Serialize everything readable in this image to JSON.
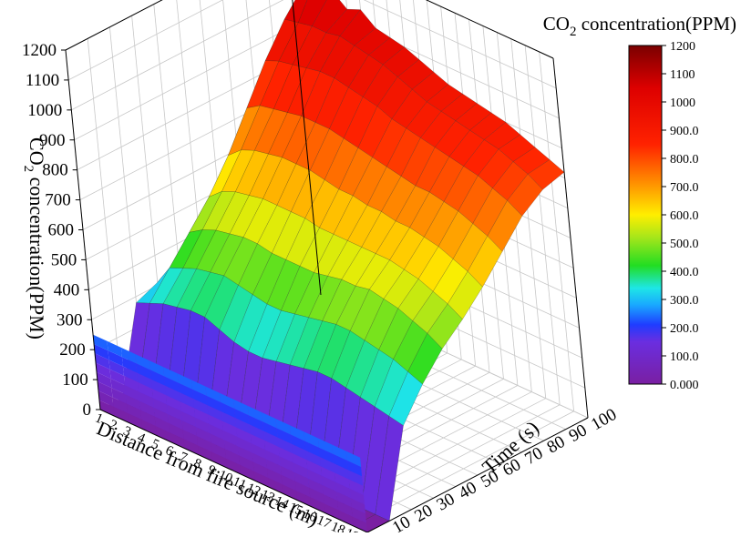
{
  "chart_data": {
    "type": "surface3d",
    "title": "",
    "zlabel": "CO₂ concentration(PPM)",
    "zlabel_parts": {
      "prefix": "CO",
      "sub": "2",
      "suffix": " concentration(PPM)"
    },
    "xlabel": "Distance from fire source (m)",
    "ylabel": "Time (s)",
    "x_ticks": [
      "1",
      "2",
      "3",
      "4",
      "5",
      "6",
      "7",
      "8",
      "9",
      "10",
      "11",
      "12",
      "13",
      "14",
      "15",
      "16",
      "17",
      "18",
      "19",
      "20"
    ],
    "y_ticks": [
      "10",
      "20",
      "30",
      "40",
      "50",
      "60",
      "70",
      "80",
      "90",
      "100"
    ],
    "z_ticks": [
      "0",
      "100",
      "200",
      "300",
      "400",
      "500",
      "600",
      "700",
      "800",
      "900",
      "1000",
      "1100",
      "1200"
    ],
    "xlim": [
      1,
      20
    ],
    "ylim": [
      0,
      100
    ],
    "zlim": [
      0,
      1200
    ],
    "grid": true,
    "colorbar": {
      "title": "CO₂ concentration(PPM)",
      "title_parts": {
        "prefix": "CO",
        "sub": "2",
        "suffix": " concentration(PPM)"
      },
      "placement": "right",
      "range": [
        0,
        1200
      ],
      "ticks": [
        "0.000",
        "100.0",
        "200.0",
        "300.0",
        "400.0",
        "500.0",
        "600.0",
        "700.0",
        "800.0",
        "900.0",
        "1000",
        "1100",
        "1200"
      ],
      "stops": [
        {
          "value": 0,
          "color": "#7a1fa2"
        },
        {
          "value": 150,
          "color": "#6a2ee0"
        },
        {
          "value": 210,
          "color": "#1f3cff"
        },
        {
          "value": 280,
          "color": "#19a8ff"
        },
        {
          "value": 340,
          "color": "#1ee6e6"
        },
        {
          "value": 420,
          "color": "#22dd22"
        },
        {
          "value": 520,
          "color": "#a6e61a"
        },
        {
          "value": 600,
          "color": "#ffee00"
        },
        {
          "value": 700,
          "color": "#ff9a00"
        },
        {
          "value": 850,
          "color": "#ff2200"
        },
        {
          "value": 1050,
          "color": "#dd0000"
        },
        {
          "value": 1200,
          "color": "#7a0000"
        }
      ]
    },
    "series": [
      {
        "x": 1,
        "values": [
          0,
          0,
          280,
          310,
          330,
          340,
          350,
          360,
          370,
          380,
          400
        ]
      },
      {
        "x": 2,
        "values": [
          0,
          0,
          300,
          380,
          460,
          540,
          640,
          760,
          880,
          980,
          1060
        ]
      },
      {
        "x": 3,
        "values": [
          0,
          0,
          320,
          400,
          490,
          580,
          680,
          790,
          900,
          990,
          1110
        ]
      },
      {
        "x": 4,
        "values": [
          0,
          0,
          330,
          420,
          510,
          600,
          700,
          800,
          910,
          1000,
          1080
        ]
      },
      {
        "x": 5,
        "values": [
          0,
          0,
          340,
          430,
          520,
          610,
          710,
          810,
          920,
          1000,
          1040
        ]
      },
      {
        "x": 6,
        "values": [
          0,
          0,
          340,
          440,
          530,
          620,
          720,
          820,
          930,
          1010,
          1060
        ]
      },
      {
        "x": 7,
        "values": [
          0,
          0,
          320,
          430,
          530,
          620,
          720,
          820,
          930,
          1000,
          1020
        ]
      },
      {
        "x": 8,
        "values": [
          0,
          0,
          300,
          420,
          520,
          620,
          720,
          820,
          920,
          990,
          1010
        ]
      },
      {
        "x": 9,
        "values": [
          0,
          0,
          290,
          410,
          520,
          620,
          710,
          810,
          910,
          980,
          1000
        ]
      },
      {
        "x": 10,
        "values": [
          0,
          0,
          290,
          410,
          520,
          610,
          700,
          800,
          900,
          960,
          980
        ]
      },
      {
        "x": 11,
        "values": [
          0,
          0,
          300,
          420,
          520,
          610,
          700,
          790,
          880,
          940,
          960
        ]
      },
      {
        "x": 12,
        "values": [
          0,
          0,
          310,
          430,
          530,
          610,
          690,
          780,
          870,
          920,
          940
        ]
      },
      {
        "x": 13,
        "values": [
          0,
          0,
          320,
          440,
          540,
          610,
          690,
          770,
          860,
          910,
          930
        ]
      },
      {
        "x": 14,
        "values": [
          0,
          0,
          330,
          450,
          540,
          610,
          680,
          760,
          850,
          900,
          920
        ]
      },
      {
        "x": 15,
        "values": [
          0,
          0,
          330,
          450,
          550,
          610,
          680,
          760,
          840,
          890,
          910
        ]
      },
      {
        "x": 16,
        "values": [
          0,
          0,
          320,
          440,
          540,
          600,
          670,
          750,
          830,
          880,
          900
        ]
      },
      {
        "x": 17,
        "values": [
          0,
          0,
          310,
          430,
          530,
          590,
          660,
          740,
          820,
          870,
          880
        ]
      },
      {
        "x": 18,
        "values": [
          0,
          0,
          300,
          420,
          510,
          570,
          640,
          720,
          800,
          850,
          860
        ]
      },
      {
        "x": 19,
        "values": [
          0,
          0,
          290,
          400,
          490,
          550,
          620,
          700,
          780,
          830,
          840
        ]
      },
      {
        "x": 20,
        "values": [
          0,
          0,
          280,
          380,
          460,
          520,
          590,
          670,
          750,
          800,
          820
        ]
      }
    ]
  }
}
